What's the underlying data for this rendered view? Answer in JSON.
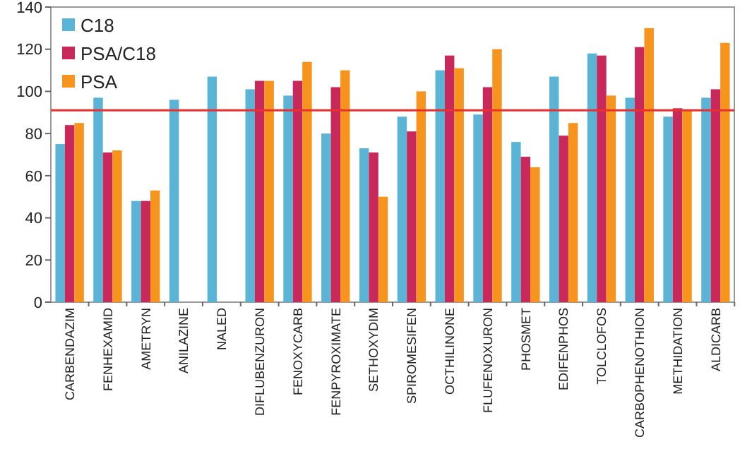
{
  "chart_data": {
    "type": "bar",
    "categories": [
      "CARBENDAZIM",
      "FENHEXAMID",
      "AMETRYN",
      "ANILAZINE",
      "NALED",
      "DIFLUBENZURON",
      "FENOXYCARB",
      "FENPYROXIMATE",
      "SETHOXYDIM",
      "SPIROMESIFEN",
      "OCTHILINONE",
      "FLUFENOXURON",
      "PHOSMET",
      "EDIFENPHOS",
      "TOLCLOFOS",
      "CARBOPHENOTHION",
      "METHIDATION",
      "ALDICARB"
    ],
    "series": [
      {
        "name": "C18",
        "color": "#5bb4d6",
        "values": [
          75,
          97,
          48,
          96,
          107,
          101,
          98,
          80,
          73,
          88,
          110,
          89,
          76,
          107,
          118,
          97,
          88,
          97
        ]
      },
      {
        "name": "PSA/C18",
        "color": "#c8285a",
        "values": [
          84,
          71,
          48,
          null,
          null,
          105,
          105,
          102,
          71,
          81,
          117,
          102,
          69,
          79,
          117,
          121,
          92,
          101
        ]
      },
      {
        "name": "PSA",
        "color": "#f7941d",
        "values": [
          85,
          72,
          53,
          null,
          null,
          105,
          114,
          110,
          50,
          100,
          111,
          120,
          64,
          85,
          98,
          130,
          91,
          123
        ]
      }
    ],
    "ylim": [
      0,
      140
    ],
    "yticks": [
      0,
      20,
      40,
      60,
      80,
      100,
      120,
      140
    ],
    "ref_lines": [
      {
        "axis": "y",
        "value": 91,
        "color": "#e8302e"
      }
    ],
    "legend": "top left"
  }
}
